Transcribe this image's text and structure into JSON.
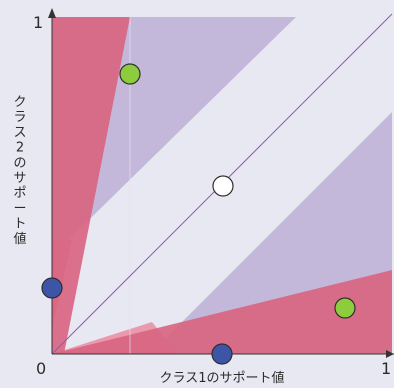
{
  "axes": {
    "x_label": "クラス1のサポート値",
    "y_label": "クラス2のサポート値",
    "origin": "0",
    "x_max": "1",
    "y_max": "1"
  },
  "colors": {
    "background": "#e8e8f2",
    "purple_region": "#c4b8da",
    "red_region": "#d86582",
    "pink_region": "#eb9aad",
    "center_band": "#ececf5",
    "diagonal_line": "#8c5fa8",
    "green_point": "#8dcc3c",
    "blue_point": "#3c55a6",
    "white_point": "#ffffff"
  },
  "points": [
    {
      "name": "green-point-upper",
      "color": "green",
      "x": 0.22,
      "y": 0.86
    },
    {
      "name": "white-point-center",
      "color": "white",
      "x": 0.5,
      "y": 0.5
    },
    {
      "name": "blue-point-left",
      "color": "blue",
      "x": 0.0,
      "y": 0.21
    },
    {
      "name": "green-point-lower",
      "color": "green",
      "x": 0.86,
      "y": 0.16
    },
    {
      "name": "blue-point-bottom",
      "color": "blue",
      "x": 0.5,
      "y": 0.0
    }
  ]
}
